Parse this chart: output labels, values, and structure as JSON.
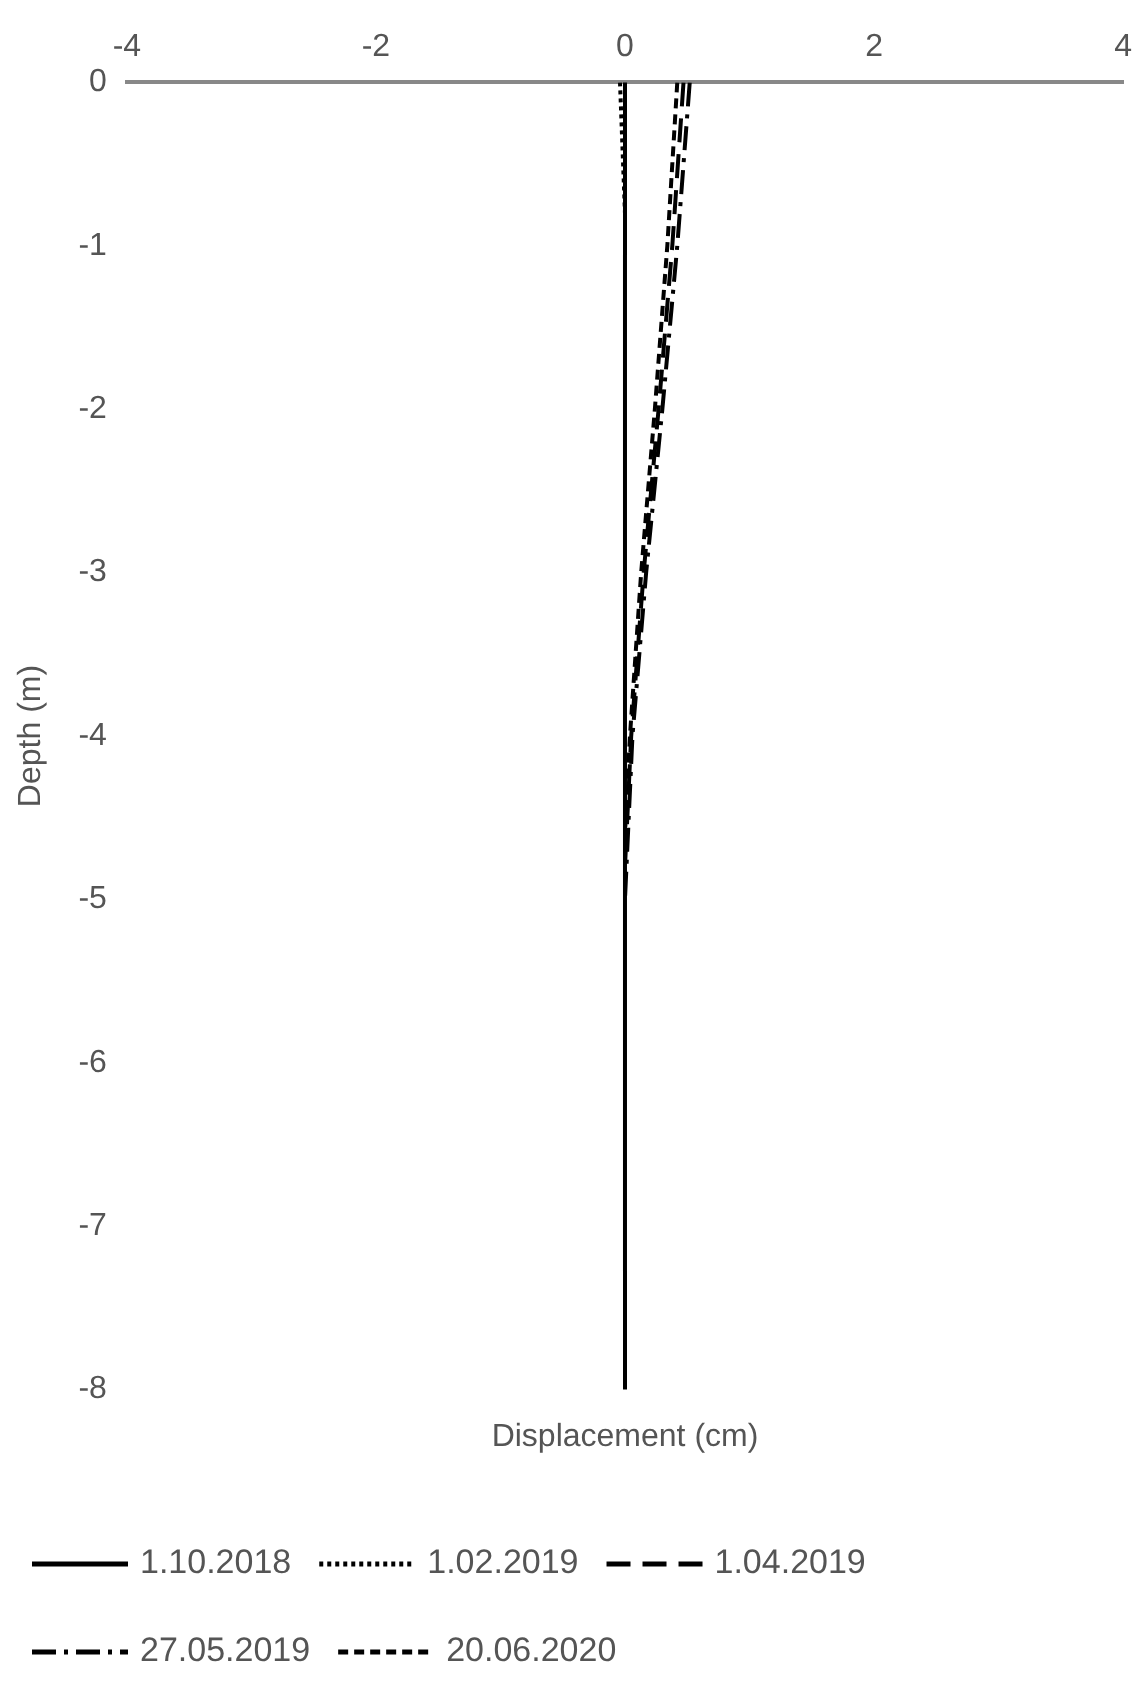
{
  "chart_data": {
    "type": "line",
    "xlabel": "Displacement (cm)",
    "ylabel": "Depth (m)",
    "xlim": [
      -4,
      4
    ],
    "xticks": [
      -4,
      -2,
      0,
      2,
      4
    ],
    "ylim": [
      -8,
      0
    ],
    "yticks": [
      -8,
      -7,
      -6,
      -5,
      -4,
      -3,
      -2,
      -1,
      0
    ],
    "grid": false,
    "legend": "bottom",
    "marker": "none",
    "series": [
      {
        "name": "1.10.2018",
        "color": "#000000",
        "line_style": "solid",
        "x": [
          0,
          0
        ],
        "values": [
          0,
          -8
        ]
      },
      {
        "name": "1.02.2019",
        "color": "#000000",
        "line_style": "dotted",
        "x": [
          -0.04,
          0
        ],
        "values": [
          0,
          -0.8
        ]
      },
      {
        "name": "1.04.2019",
        "color": "#000000",
        "line_style": "longdash",
        "x": [
          0.47,
          0.38,
          0.27,
          0.15,
          0.05,
          0
        ],
        "values": [
          0,
          -1,
          -2,
          -3,
          -4,
          -4.8
        ]
      },
      {
        "name": "27.05.2019",
        "color": "#000000",
        "line_style": "dashdot",
        "x": [
          0.52,
          0.42,
          0.3,
          0.17,
          0.06,
          0
        ],
        "values": [
          0,
          -1,
          -2,
          -3,
          -4,
          -5
        ]
      },
      {
        "name": "20.06.2020",
        "color": "#000000",
        "line_style": "dashed",
        "x": [
          0.42,
          0.34,
          0.24,
          0.13,
          0.04,
          0
        ],
        "values": [
          0,
          -1,
          -2,
          -3,
          -4,
          -4.6
        ]
      }
    ]
  }
}
